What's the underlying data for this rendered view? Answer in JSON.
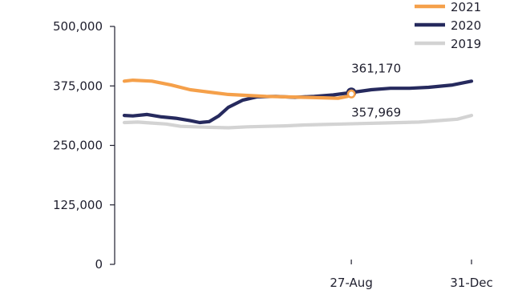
{
  "chart_data": {
    "type": "line",
    "title": "",
    "xlabel": "",
    "ylabel": "",
    "ylim": [
      0,
      500000
    ],
    "yticks": [
      {
        "value": 0,
        "label": "0"
      },
      {
        "value": 125000,
        "label": "125,000"
      },
      {
        "value": 250000,
        "label": "250,000"
      },
      {
        "value": 375000,
        "label": "375,000"
      },
      {
        "value": 500000,
        "label": "500,000"
      }
    ],
    "xlim": [
      1,
      365
    ],
    "xticks": [
      {
        "value": 239,
        "label": "27-Aug"
      },
      {
        "value": 365,
        "label": "31-Dec"
      }
    ],
    "grid": false,
    "legend_position": "top-right",
    "series": [
      {
        "name": "2021",
        "color": "#f5a04a",
        "x": [
          1,
          10,
          30,
          50,
          70,
          90,
          110,
          130,
          150,
          170,
          190,
          210,
          225,
          235,
          239
        ],
        "values": [
          385000,
          387000,
          385000,
          377000,
          367000,
          362000,
          357000,
          355000,
          353000,
          352000,
          351000,
          350000,
          349000,
          353000,
          357969
        ]
      },
      {
        "name": "2020",
        "color": "#262a5e",
        "x": [
          1,
          10,
          25,
          40,
          55,
          70,
          80,
          90,
          100,
          110,
          125,
          140,
          160,
          180,
          200,
          220,
          239,
          260,
          280,
          300,
          320,
          345,
          365
        ],
        "values": [
          313000,
          312000,
          315000,
          310000,
          307000,
          302000,
          298000,
          300000,
          312000,
          330000,
          345000,
          352000,
          353000,
          351000,
          353000,
          356000,
          361170,
          367000,
          370000,
          370000,
          372000,
          377000,
          385000
        ]
      },
      {
        "name": "2019",
        "color": "#d3d3d3",
        "x": [
          1,
          15,
          30,
          45,
          60,
          75,
          90,
          110,
          130,
          150,
          170,
          190,
          210,
          230,
          250,
          270,
          290,
          310,
          330,
          350,
          365
        ],
        "values": [
          298000,
          299000,
          297000,
          295000,
          290000,
          289000,
          288000,
          287000,
          289000,
          290000,
          291000,
          293000,
          294000,
          295000,
          296000,
          297000,
          298000,
          299000,
          302000,
          305000,
          313000
        ]
      }
    ],
    "annotations": [
      {
        "series": "2020",
        "x": 239,
        "value": 361170,
        "label": "361,170",
        "position": "above",
        "marker": "ring"
      },
      {
        "series": "2021",
        "x": 239,
        "value": 357969,
        "label": "357,969",
        "position": "below",
        "marker": "filled"
      }
    ]
  }
}
